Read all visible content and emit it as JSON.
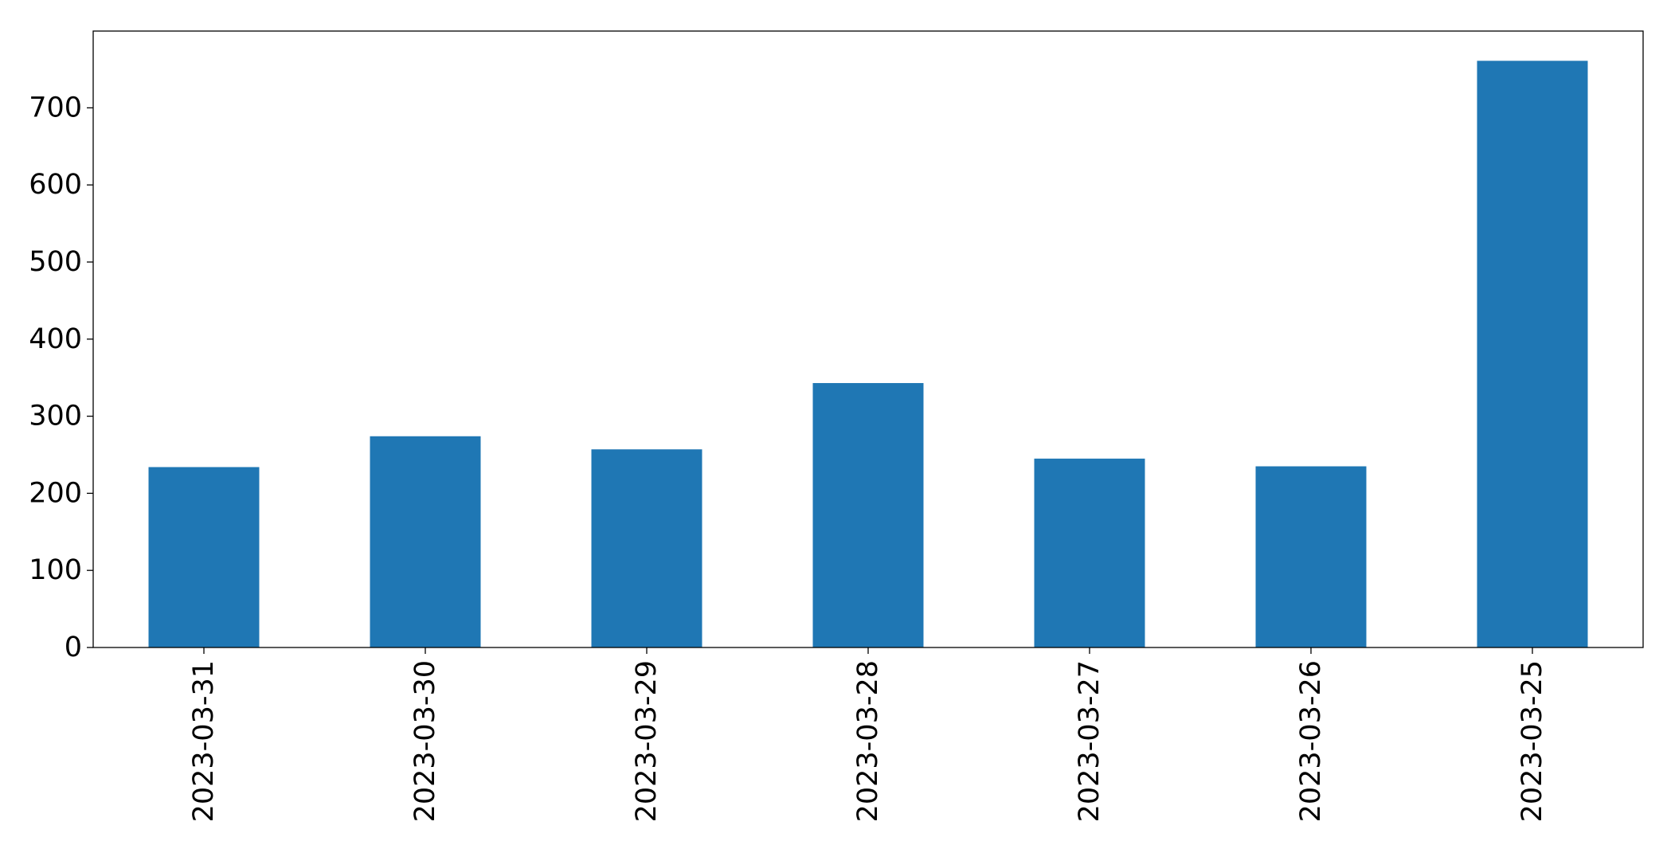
{
  "chart_data": {
    "type": "bar",
    "title": "",
    "xlabel": "",
    "ylabel": "",
    "categories": [
      "2023-03-31",
      "2023-03-30",
      "2023-03-29",
      "2023-03-28",
      "2023-03-27",
      "2023-03-26",
      "2023-03-25"
    ],
    "series": [
      {
        "values": [
          234,
          274,
          257,
          343,
          245,
          235,
          761
        ],
        "color": "#1f77b4"
      }
    ],
    "ylim": [
      0,
      800
    ],
    "yticks": [
      0,
      100,
      200,
      300,
      400,
      500,
      600,
      700
    ],
    "ytick_labels": [
      "0",
      "100",
      "200",
      "300",
      "400",
      "500",
      "600",
      "700"
    ],
    "xtick_rotation": "vertical",
    "grid": false,
    "legend": "none"
  }
}
